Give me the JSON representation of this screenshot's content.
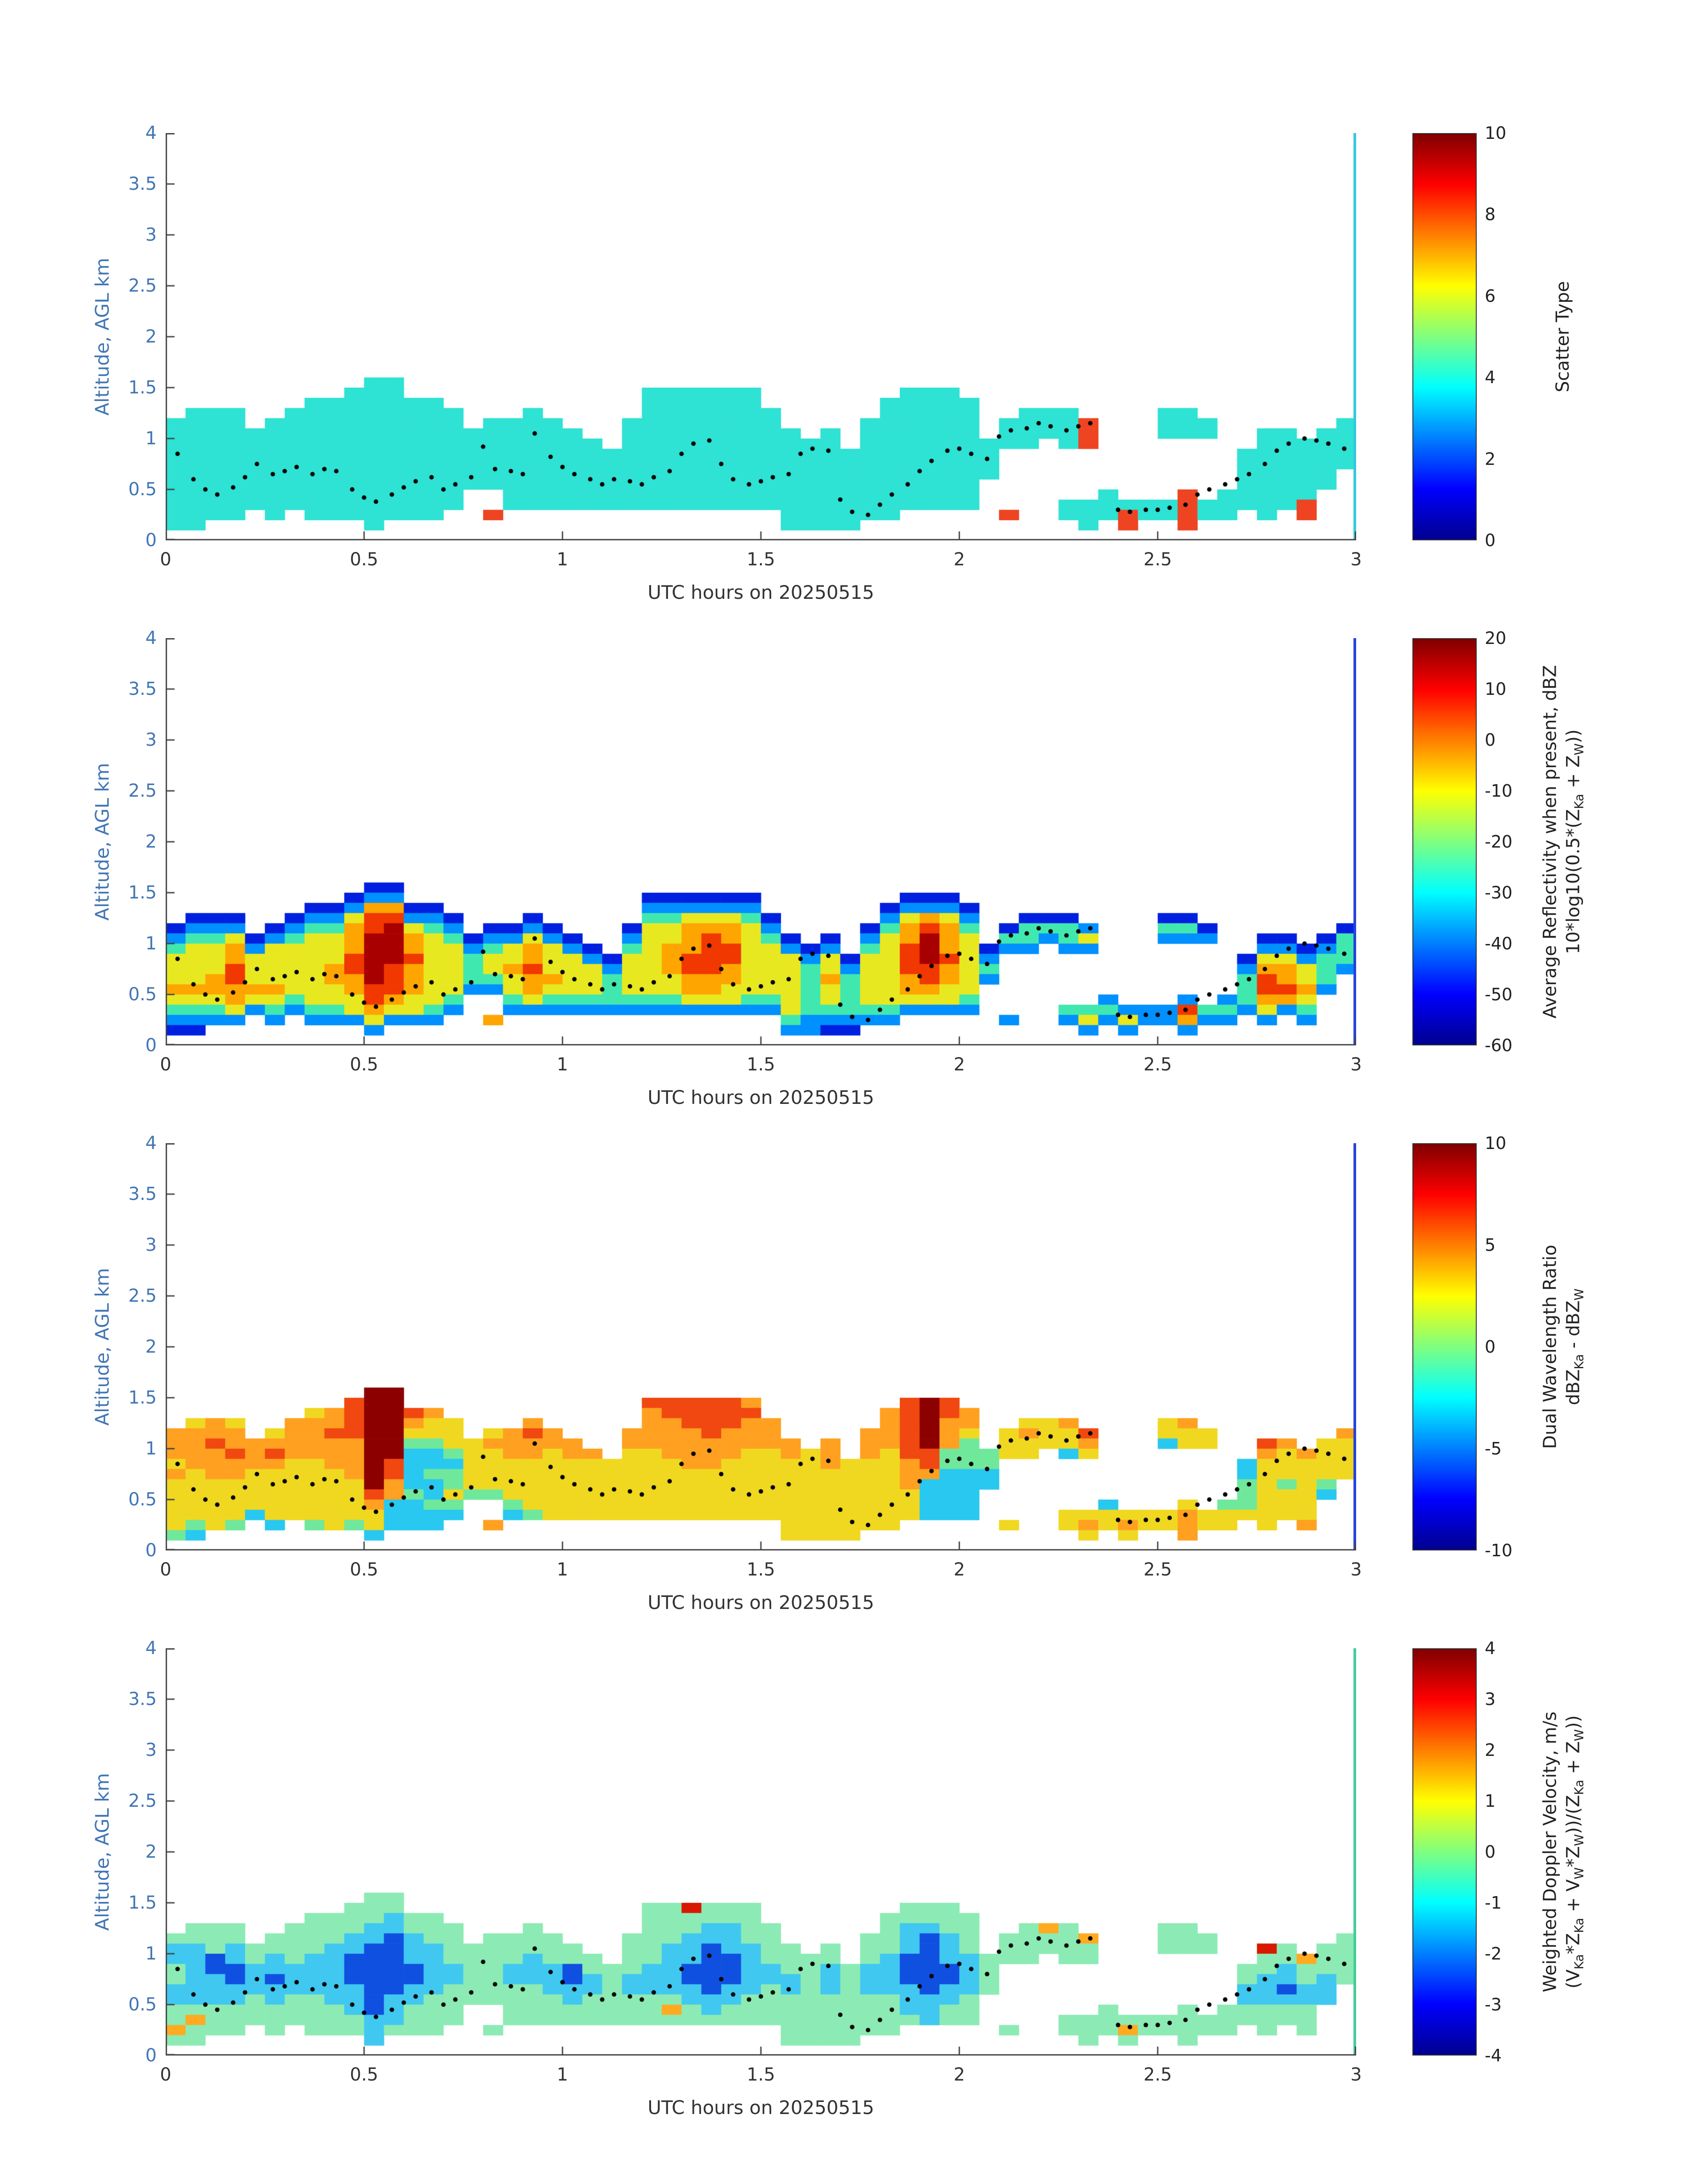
{
  "axes": {
    "ylabel": "Altitude, AGL km",
    "xlabel": "UTC hours on 20250515",
    "xlim": [
      0,
      3
    ],
    "ylim": [
      0,
      4
    ],
    "x_ticks": {
      "values": [
        0,
        0.5,
        1,
        1.5,
        2,
        2.5,
        3
      ],
      "labels": [
        "0",
        "0.5",
        "1",
        "1.5",
        "2",
        "2.5",
        "3"
      ]
    },
    "y_ticks": {
      "values": [
        0,
        0.5,
        1,
        1.5,
        2,
        2.5,
        3,
        3.5,
        4
      ],
      "labels": [
        "0",
        "0.5",
        "1",
        "1.5",
        "2",
        "2.5",
        "3",
        "3.5",
        "4"
      ]
    },
    "y_color": "#4276B4",
    "x_color": "#333333",
    "axis_line_color": "#444444"
  },
  "chart_data": {
    "type": "heatmap",
    "n_panels": 4,
    "grid": {
      "t0": 0,
      "dt": 0.05,
      "ncols": 60,
      "z0": 0,
      "dz": 0.1,
      "nrows": 16,
      "rows_order": "top-to-bottom",
      "row_top_altitude_km": 1.6
    },
    "colormap": "jet",
    "colormap_stops": [
      {
        "pos": 0,
        "color": "#000090"
      },
      {
        "pos": 0.125,
        "color": "#0000FF"
      },
      {
        "pos": 0.375,
        "color": "#00FFFF"
      },
      {
        "pos": 0.625,
        "color": "#FFFF00"
      },
      {
        "pos": 0.875,
        "color": "#FF0000"
      },
      {
        "pos": 1,
        "color": "#800000"
      }
    ],
    "track": {
      "label": "cloud-base-track-dots",
      "color": "#000000",
      "points": [
        [
          0.03,
          0.85
        ],
        [
          0.07,
          0.6
        ],
        [
          0.1,
          0.5
        ],
        [
          0.13,
          0.45
        ],
        [
          0.17,
          0.52
        ],
        [
          0.2,
          0.62
        ],
        [
          0.23,
          0.75
        ],
        [
          0.27,
          0.65
        ],
        [
          0.3,
          0.68
        ],
        [
          0.33,
          0.72
        ],
        [
          0.37,
          0.65
        ],
        [
          0.4,
          0.7
        ],
        [
          0.43,
          0.68
        ],
        [
          0.47,
          0.5
        ],
        [
          0.5,
          0.42
        ],
        [
          0.53,
          0.38
        ],
        [
          0.57,
          0.45
        ],
        [
          0.6,
          0.52
        ],
        [
          0.63,
          0.58
        ],
        [
          0.67,
          0.62
        ],
        [
          0.7,
          0.5
        ],
        [
          0.73,
          0.55
        ],
        [
          0.77,
          0.62
        ],
        [
          0.8,
          0.92
        ],
        [
          0.83,
          0.7
        ],
        [
          0.87,
          0.68
        ],
        [
          0.9,
          0.65
        ],
        [
          0.93,
          1.05
        ],
        [
          0.97,
          0.82
        ],
        [
          1.0,
          0.72
        ],
        [
          1.03,
          0.65
        ],
        [
          1.07,
          0.6
        ],
        [
          1.1,
          0.55
        ],
        [
          1.13,
          0.6
        ],
        [
          1.17,
          0.58
        ],
        [
          1.2,
          0.55
        ],
        [
          1.23,
          0.62
        ],
        [
          1.27,
          0.68
        ],
        [
          1.3,
          0.85
        ],
        [
          1.33,
          0.95
        ],
        [
          1.37,
          0.98
        ],
        [
          1.4,
          0.75
        ],
        [
          1.43,
          0.6
        ],
        [
          1.47,
          0.55
        ],
        [
          1.5,
          0.58
        ],
        [
          1.53,
          0.62
        ],
        [
          1.57,
          0.65
        ],
        [
          1.6,
          0.85
        ],
        [
          1.63,
          0.9
        ],
        [
          1.67,
          0.88
        ],
        [
          1.7,
          0.4
        ],
        [
          1.73,
          0.28
        ],
        [
          1.77,
          0.25
        ],
        [
          1.8,
          0.35
        ],
        [
          1.83,
          0.45
        ],
        [
          1.87,
          0.55
        ],
        [
          1.9,
          0.68
        ],
        [
          1.93,
          0.78
        ],
        [
          1.97,
          0.88
        ],
        [
          2.0,
          0.9
        ],
        [
          2.03,
          0.85
        ],
        [
          2.07,
          0.8
        ],
        [
          2.1,
          1.02
        ],
        [
          2.13,
          1.08
        ],
        [
          2.17,
          1.1
        ],
        [
          2.2,
          1.15
        ],
        [
          2.23,
          1.12
        ],
        [
          2.27,
          1.08
        ],
        [
          2.3,
          1.12
        ],
        [
          2.33,
          1.15
        ],
        [
          2.4,
          0.3
        ],
        [
          2.43,
          0.28
        ],
        [
          2.47,
          0.3
        ],
        [
          2.5,
          0.3
        ],
        [
          2.53,
          0.32
        ],
        [
          2.57,
          0.35
        ],
        [
          2.6,
          0.45
        ],
        [
          2.63,
          0.5
        ],
        [
          2.67,
          0.55
        ],
        [
          2.7,
          0.6
        ],
        [
          2.73,
          0.65
        ],
        [
          2.77,
          0.75
        ],
        [
          2.8,
          0.88
        ],
        [
          2.83,
          0.95
        ],
        [
          2.87,
          1.0
        ],
        [
          2.9,
          0.98
        ],
        [
          2.93,
          0.95
        ],
        [
          2.97,
          0.9
        ]
      ]
    },
    "panels": [
      {
        "id": "scatter-type",
        "colorbar": {
          "clim": [
            0,
            10
          ],
          "tick_values": [
            10,
            8,
            6,
            4,
            2,
            0
          ],
          "tick_labels": [
            "10",
            "8",
            "6",
            "4",
            "2",
            "0"
          ],
          "title_lines": [
            "Scatter Type"
          ]
        },
        "palette": {
          "a": "#2EE2D4",
          "r": "#EE4422"
        },
        "value_key": {
          "a": 4,
          "r": 8.5
        },
        "right_edge_color": "#35C8E0",
        "rows": [
          "..........aa................................................",
          ".........aaa............aaaaaa.......aaa....................",
          ".......aaaaaaa..........aaaaaa......aaaaa...................",
          ".aaa..aaaaaaaaa...a.....aaaaaaa.....aaaaa..aaa....aa........",
          "aaaa.aaaaaaaaaa.aaaa...aaaaaaaa....aaaaaa.aaaar...aaa......a",
          "aaaaaaaaaaaaaaaaaaaaa..aaaaaaaaa.a.aaaaaa.aaaar...aaa..aa.aa",
          "aaaaaaaaaaaaaaaaaaaaaa.aaaaaaaaaaa.aaaaaaaaa.ar........aaaaa",
          "aaaaaaaaaaaaaaaaaaaaaaaaaaaaaaaaaaaaaaaaaa............aaaaaa",
          "aaaaaaaaaaaaaaaaaaaaaaaaaaaaaaaaaaaaaaaaaa............aaaaaa",
          "aaaaaaaaaaaaaaaaaaaaaaaaaaaaaaaaaaaaaaaaaa............aaaaa.",
          "aaaaaaaaaaaaaaaaaaaaaaaaaaaaaaaaaaaaaaaaa.............aaaaa.",
          "aaaaaaaaaaaaaaa..aaaaaaaaaaaaaaaaaaaaaaaa......a...r.aaaaa..",
          "aaaaaaaaaaaaaaa..aaaaaaaaaaaaaaaaaaaaaaaa....aaaaaaraaaaar..",
          "aaaa.a.aaaaaaa..r..............aaaaaa.....r..aaaraaraa.a.r..",
          "aa........a....................aaaa...........a.r..r........",
          "............................................................"
        ]
      },
      {
        "id": "average-reflectivity",
        "colorbar": {
          "clim": [
            -60,
            20
          ],
          "tick_values": [
            20,
            10,
            0,
            -10,
            -20,
            -30,
            -40,
            -50,
            -60
          ],
          "tick_labels": [
            "20",
            "10",
            "0",
            "-10",
            "-20",
            "-30",
            "-40",
            "-50",
            "-60"
          ],
          "title_lines": [
            "Average Reflectivity when present, dBZ",
            "10*log10(0.5*(Z_{Ka} + Z_{W}))"
          ]
        },
        "palette": {
          "b": "#0020E0",
          "c": "#0090FF",
          "g": "#40E8B0",
          "y": "#E8E820",
          "o": "#FFA500",
          "r": "#F03800",
          "R": "#A80000"
        },
        "value_key": {
          "b": -50,
          "c": -40,
          "g": -28,
          "y": -15,
          "o": -5,
          "r": 5,
          "R": 14
        },
        "right_edge_color": "#2244DD",
        "rows": [
          "..........bb................................................",
          ".........bcc............bbbbbb.......bbb....................",
          ".......bbcoobb..........cccccc......bcccb...................",
          ".bbb..bccyrrccb...b.....ggyyygb.....cyoyc..bbb....bb........",
          "bccc.bcggorRygc.bbcb...byyoooyc....bgorog.bgggc...ggb......b",
          "cggybcgyyoRRoygbccycb..cyyoroygb.b.cyoRoy.ggcgy...ccc..bb.bg",
          "gyyocyyyyoRRoyycgyoycb.gyoorryycbc.gyrRoybcc.cc........ccbcg",
          "yyyoyyyyyrRRryygyyoyycbyyorrryyycybyyrRryc............byycgg",
          "yyyryyyyorRroyygyoryyycyyorroyyygycyyrroyg............cooygc",
          "yyoryyyyooRroyyggyooyygyyyoooyyygogyyoroyc............groyg.",
          "ooooooyyyorroyyccyoyyygyyyooyyyygygyyooyy.............grroc.",
          "yyyoyygyyyroyyg..gygggggggyyyggygygyyyyyg......c...c.cgooy..",
          "gggycgcggyoyygc..ccccccccccccccygggggcccc....gggcccrggcycg..",
          "cccc.c.cccyccc..o..............gccccc.....c..cycyccocc.c.c..",
          "bb........c....................ccbb...........c.c..c........",
          "............................................................"
        ]
      },
      {
        "id": "dual-wavelength-ratio",
        "colorbar": {
          "clim": [
            -10,
            10
          ],
          "tick_values": [
            10,
            5,
            0,
            -5,
            -10
          ],
          "tick_labels": [
            "10",
            "5",
            "0",
            "-5",
            "-10"
          ],
          "title_lines": [
            "Dual Wavelength Ratio",
            "dBZ_{Ka} - dBZ_{W}"
          ]
        },
        "palette": {
          "b": "#1048E0",
          "c": "#28C8F0",
          "g": "#70E89C",
          "y": "#F0D820",
          "o": "#FFA020",
          "r": "#F04810",
          "D": "#8C0000"
        },
        "value_key": {
          "b": -6,
          "c": -3,
          "g": -0.5,
          "y": 2,
          "o": 4,
          "r": 6,
          "D": 9
        },
        "right_edge_color": "#2244DD",
        "rows": [
          "..........DD................................................",
          ".........rDD............rrrrro.......rDr....................",
          ".......yorDDro..........orrrrr......orDro...................",
          ".yoy..ooorDDoyy...o.....oorrroo.....orDoo..yyo....yo........",
          "oooo.yoorrDDyyy.yoro...oooorooo....oorDoy.yoyyr...yyy......o",
          "ooroooooooDDggyyooooo..ooooooooo.o.oorDog.yyyyo...cyy..ro.yy",
          "ooororooooDDccgyyooyoo.yyooooyyoyo.oyrrgggyy.cy........oyoyy",
          "yoooooyyooDrcccyyyyyyyyyyyooyyyyyoyyyorggg............cyyyyy",
          "oyooyyyyyoDrcggyyyyyyyyyyyyyyyyyyyyyyooccc............cyyyyy",
          "yyyyyyyyyyDoccgyyyyyyyyyyyyyyyyyyyyyyocccc............gygyg.",
          "yyyyyyyyyyrogcyggyyyyyyyyyyyyyyyyyyyyyccc.............gyyyc.",
          "yyyyyyyyyyoccgg..gyyyyyyyyyyyyyyyyyyyyccc......c...y.ggyyy..",
          "yyyycyyyyyycccc..cgyyyyyyyyyyyyyyyyyyyccc....yyyyyyoyyyyyy..",
          "ygyg.c.gygyccc..o..............yyyyyy.....y..yoyoyyoyy.y.o..",
          "gc........c....................yyyy...........y.y..o........",
          "............................................................"
        ]
      },
      {
        "id": "weighted-doppler-velocity",
        "colorbar": {
          "clim": [
            -4,
            4
          ],
          "tick_values": [
            4,
            3,
            2,
            1,
            0,
            -1,
            -2,
            -3,
            -4
          ],
          "tick_labels": [
            "4",
            "3",
            "2",
            "1",
            "0",
            "-1",
            "-2",
            "-3",
            "-4"
          ],
          "title_lines": [
            "Weighted Doppler Velocity, m/s",
            "(V_{Ka}*Z_{Ka} + V_{W}*Z_{W}))/(Z_{Ka} + Z_{W}))"
          ]
        },
        "palette": {
          "b": "#1050E0",
          "c": "#40C8F0",
          "g": "#8CEBB4",
          "y": "#D8F050",
          "o": "#FFAA20",
          "r": "#D81800"
        },
        "value_key": {
          "b": -2.5,
          "c": -1.2,
          "g": -0.4,
          "y": 0.5,
          "o": 1.5,
          "r": 3
        },
        "right_edge_color": "#44CC99",
        "rows": [
          "..........gg................................................",
          ".........ggg............ggrggg.......ggg....................",
          ".......ggggcgg..........gggggg......ggggg...................",
          ".ggg..ggggccggg...g.....gggccgg.....gccgg..gog....gg........",
          "gggg.ggggccbcgg.gggg...gggcccgg....ggcbcg.ggggo...ggg......g",
          "ccgcggggccbbccggggggg..ggccbccgg.g.ggcbcg.ggggg...ggg..rg.gg",
          "ccbcgcgccbbbccggggcggg.ggccbbcgggg.gcbbccggg.gg........ggogg",
          "gcbbcccccbbbbccggcccbgggccbbbccggcgccbbbcg............ggcggg",
          "gccbcbcccbbbbccggcccbcgcccbbbcccgcgccbbbcg............gccgcg",
          "ccccccccccbbccgggggcccgccccbccgcgcgcccbccg............ccbcc.",
          "ccccgcggccbccgggggggcgggggcccggggggggcccg.............ccccc.",
          "gggggggggcbcggg..ggggggggogcgggggggggccgg......g...g.ggggg..",
          "goggggggggccggg..gggggggggggggggggggggcgg....ggggggggggggg..",
          "oggg.g.gggcggg..g..............gggggg.....g..gggoggggg.g.g..",
          "gg........c....................gggg...........g.g..g........",
          "............................................................"
        ]
      }
    ]
  }
}
